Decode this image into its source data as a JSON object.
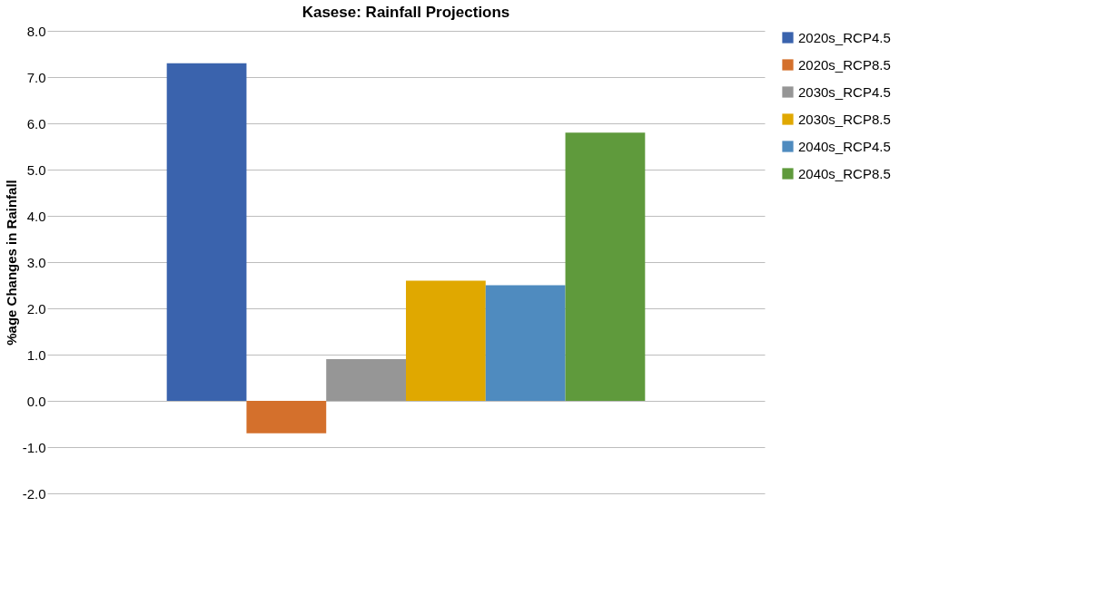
{
  "chart_data": {
    "type": "bar",
    "title": "Kasese: Rainfall  Projections",
    "ylabel": "%age Changes in Rainfall",
    "categories": [
      null
    ],
    "series": [
      {
        "name": "2020s_RCP4.5",
        "color": "#3a63ad",
        "values": [
          7.3
        ]
      },
      {
        "name": "2020s_RCP8.5",
        "color": "#d4702c",
        "values": [
          -0.7
        ]
      },
      {
        "name": "2030s_RCP4.5",
        "color": "#969696",
        "values": [
          0.9
        ]
      },
      {
        "name": "2030s_RCP8.5",
        "color": "#e0a800",
        "values": [
          2.6
        ]
      },
      {
        "name": "2040s_RCP4.5",
        "color": "#4f8bbf",
        "values": [
          2.5
        ]
      },
      {
        "name": "2040s_RCP8.5",
        "color": "#5f9a3c",
        "values": [
          5.8
        ]
      }
    ],
    "ylim": [
      -2,
      8
    ],
    "yticks": [
      {
        "value": -2,
        "label": "-2.0"
      },
      {
        "value": -1,
        "label": "-1.0"
      },
      {
        "value": 0,
        "label": "0.0"
      },
      {
        "value": 1,
        "label": "1.0"
      },
      {
        "value": 2,
        "label": "2.0"
      },
      {
        "value": 3,
        "label": "3.0"
      },
      {
        "value": 4,
        "label": "4.0"
      },
      {
        "value": 5,
        "label": "5.0"
      },
      {
        "value": 6,
        "label": "6.0"
      },
      {
        "value": 7,
        "label": "7.0"
      },
      {
        "value": 8,
        "label": "8.0"
      }
    ],
    "grid": "y",
    "legend": "right",
    "tick_labels": "y"
  }
}
